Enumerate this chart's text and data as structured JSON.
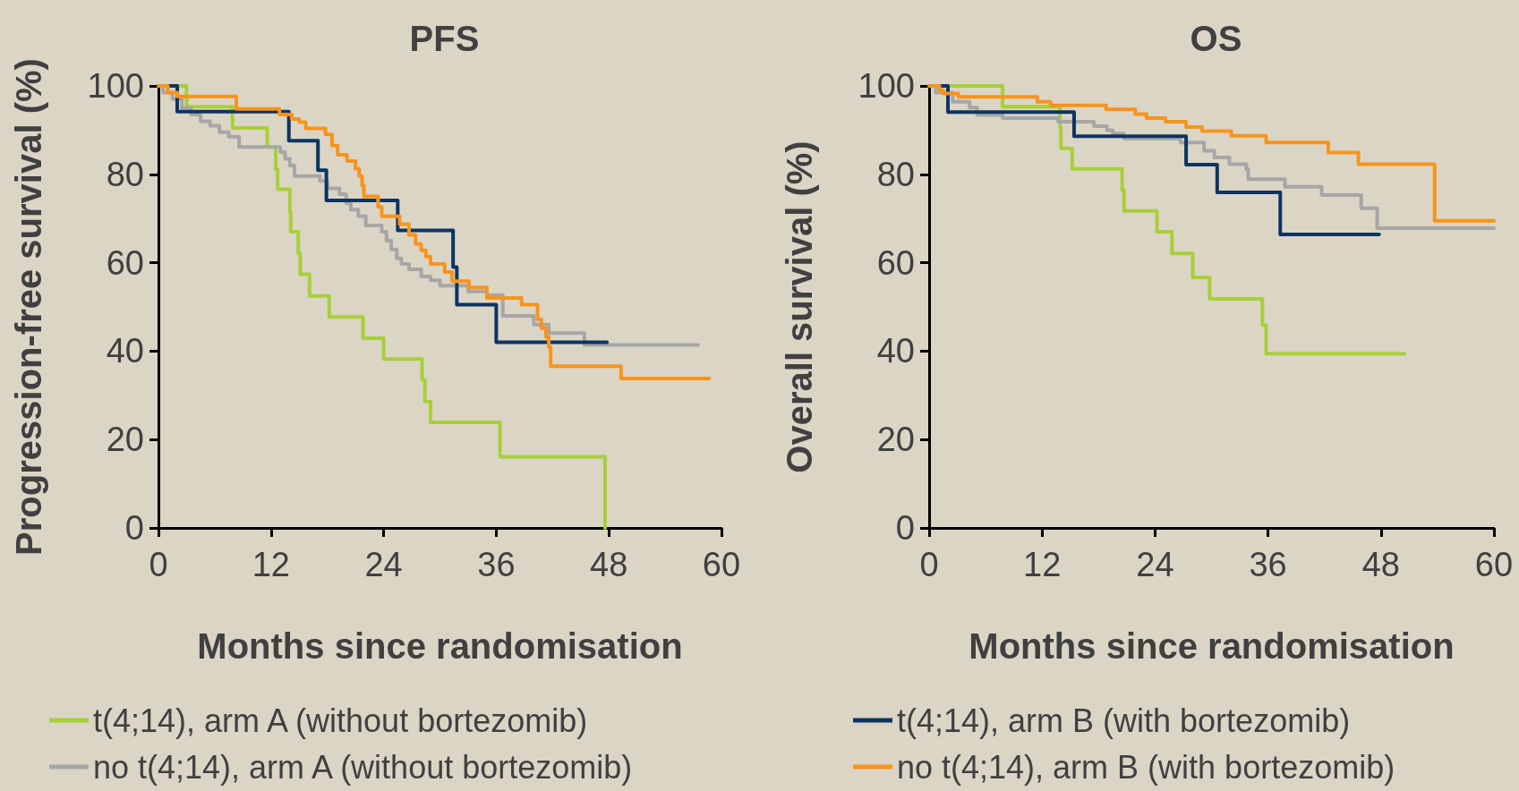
{
  "chart_data": [
    {
      "type": "step",
      "title": "PFS",
      "xlabel": "Months since randomisation",
      "ylabel": "Progression-free survival (%)",
      "xlim": [
        0,
        60
      ],
      "xticks": [
        0,
        12,
        24,
        36,
        48,
        60
      ],
      "ylim": [
        0,
        100
      ],
      "yticks": [
        0,
        20,
        40,
        60,
        80,
        100
      ],
      "grid": false,
      "legend": "bottom left",
      "marker": "none",
      "line_style": "solid",
      "series": [
        {
          "name": "t(4;14), arm A (without bortezomib)",
          "color": "#a8cf38",
          "x": [
            0,
            3.0,
            7.9,
            11.6,
            12.5,
            12.7,
            14.0,
            14.1,
            14.9,
            15.1,
            16.1,
            18.2,
            21.8,
            24.0,
            28.1,
            28.4,
            29.0,
            36.4,
            47.6
          ],
          "values": [
            100,
            95.3,
            90.5,
            86.2,
            81.1,
            76.6,
            71.5,
            67.0,
            62.1,
            57.4,
            52.5,
            47.7,
            42.9,
            38.2,
            33.5,
            28.6,
            23.9,
            16.1,
            0
          ]
        },
        {
          "name": "no t(4;14), arm A (without bortezomib)",
          "color": "#a6a6a6",
          "x": [
            0,
            0.5,
            1.5,
            2.5,
            3.5,
            4.5,
            5.5,
            6.5,
            7.5,
            8.6,
            13,
            13.5,
            14,
            14.5,
            17.2,
            18,
            19.3,
            20,
            20.5,
            21.3,
            22.1,
            23.8,
            24.3,
            24.8,
            25.4,
            25.9,
            26.7,
            28,
            29,
            30,
            33,
            35,
            36.7,
            40,
            41.6,
            45.4,
            57.5
          ],
          "values": [
            100,
            98.5,
            97,
            95,
            93.5,
            92,
            91,
            89.5,
            88.5,
            86.2,
            85,
            83.5,
            82,
            79.6,
            78.5,
            76.8,
            75.5,
            73.5,
            72,
            70.5,
            68.4,
            67,
            65,
            63,
            61,
            59.7,
            58.5,
            56.9,
            56,
            54.8,
            53.5,
            52.7,
            48,
            46,
            44.1,
            41.4,
            41.4
          ]
        },
        {
          "color": "#0d3461",
          "x": [
            0,
            2.0,
            13.9,
            17.0,
            17.9,
            25.5,
            31.4,
            31.8,
            36.0,
            47.8
          ],
          "values": [
            100,
            94.2,
            87.6,
            80.9,
            74.1,
            67.3,
            59.0,
            50.5,
            42.0,
            42.0
          ]
        },
        {
          "color": "#f7941d",
          "x": [
            0,
            1,
            2,
            3.4,
            8.3,
            12.9,
            14.2,
            15.0,
            15.7,
            17.8,
            18.5,
            19.1,
            20.1,
            21,
            21.4,
            21.7,
            21.9,
            23.4,
            23.8,
            25.7,
            26.7,
            27.4,
            28,
            28.5,
            29,
            30.5,
            31.3,
            33.1,
            35,
            38.7,
            40.4,
            40.8,
            41.3,
            41.6,
            41.8,
            49.3,
            58.7
          ],
          "values": [
            100,
            98.5,
            97.6,
            97.6,
            94.8,
            93.5,
            92.5,
            91.8,
            90.4,
            89,
            86.5,
            84.4,
            83,
            81.3,
            79.6,
            77.5,
            75,
            72.6,
            70.5,
            68.7,
            66.3,
            64.2,
            62.8,
            61.4,
            59.7,
            57.9,
            55.8,
            54.4,
            52,
            50.5,
            47.2,
            45.2,
            43.2,
            40.9,
            36.6,
            33.8,
            33.8
          ]
        }
      ]
    },
    {
      "type": "step",
      "title": "OS",
      "xlabel": "Months since randomisation",
      "ylabel": "Overall survival (%)",
      "xlim": [
        0,
        60
      ],
      "xticks": [
        0,
        12,
        24,
        36,
        48,
        60
      ],
      "ylim": [
        0,
        100
      ],
      "yticks": [
        0,
        20,
        40,
        60,
        80,
        100
      ],
      "grid": false,
      "legend": "bottom",
      "marker": "none",
      "line_style": "solid",
      "series": [
        {
          "color": "#a8cf38",
          "x": [
            0,
            7.8,
            13.9,
            14.0,
            15.2,
            20.5,
            20.7,
            24.2,
            25.8,
            28.0,
            29.8,
            35.4,
            35.8,
            50.5
          ],
          "values": [
            100,
            95.3,
            90.6,
            85.9,
            81.2,
            76.4,
            71.7,
            67.0,
            62.1,
            56.7,
            51.8,
            45.9,
            39.4,
            39.4
          ]
        },
        {
          "color": "#a6a6a6",
          "x": [
            0,
            0.7,
            2.5,
            4.3,
            5.1,
            7.8,
            13.7,
            17.5,
            18.9,
            19.5,
            20.7,
            26.7,
            29.2,
            30.3,
            31.9,
            33.7,
            33.9,
            37.8,
            41.7,
            45.9,
            47.6,
            60
          ],
          "values": [
            100,
            98.5,
            96.4,
            95.1,
            93.4,
            92.7,
            91.9,
            90.9,
            90,
            89.2,
            88.1,
            87.2,
            85.3,
            83.8,
            82.3,
            81.1,
            78.9,
            77.2,
            75.3,
            72.3,
            67.8,
            67.8
          ]
        },
        {
          "name": "t(4;14), arm B (with bortezomib)",
          "color": "#0d3461",
          "x": [
            0,
            2.0,
            15.4,
            27.3,
            30.6,
            37.3,
            47.8
          ],
          "values": [
            100,
            94.1,
            88.6,
            82.2,
            75.9,
            66.4,
            66.4
          ]
        },
        {
          "name": "no t(4;14), arm B (with bortezomib)",
          "color": "#f7941d",
          "x": [
            0,
            1.1,
            1.5,
            3.1,
            11.5,
            12.9,
            18.8,
            21.9,
            23.1,
            25.1,
            27.3,
            29,
            32.1,
            35.8,
            42.4,
            45.6,
            53.7,
            60
          ],
          "values": [
            100,
            99,
            98.3,
            97.5,
            96.4,
            95.6,
            94.7,
            93.6,
            92.7,
            91.9,
            90.7,
            89.8,
            88.7,
            87.2,
            84.9,
            82.3,
            69.5,
            69.5
          ]
        }
      ]
    }
  ]
}
